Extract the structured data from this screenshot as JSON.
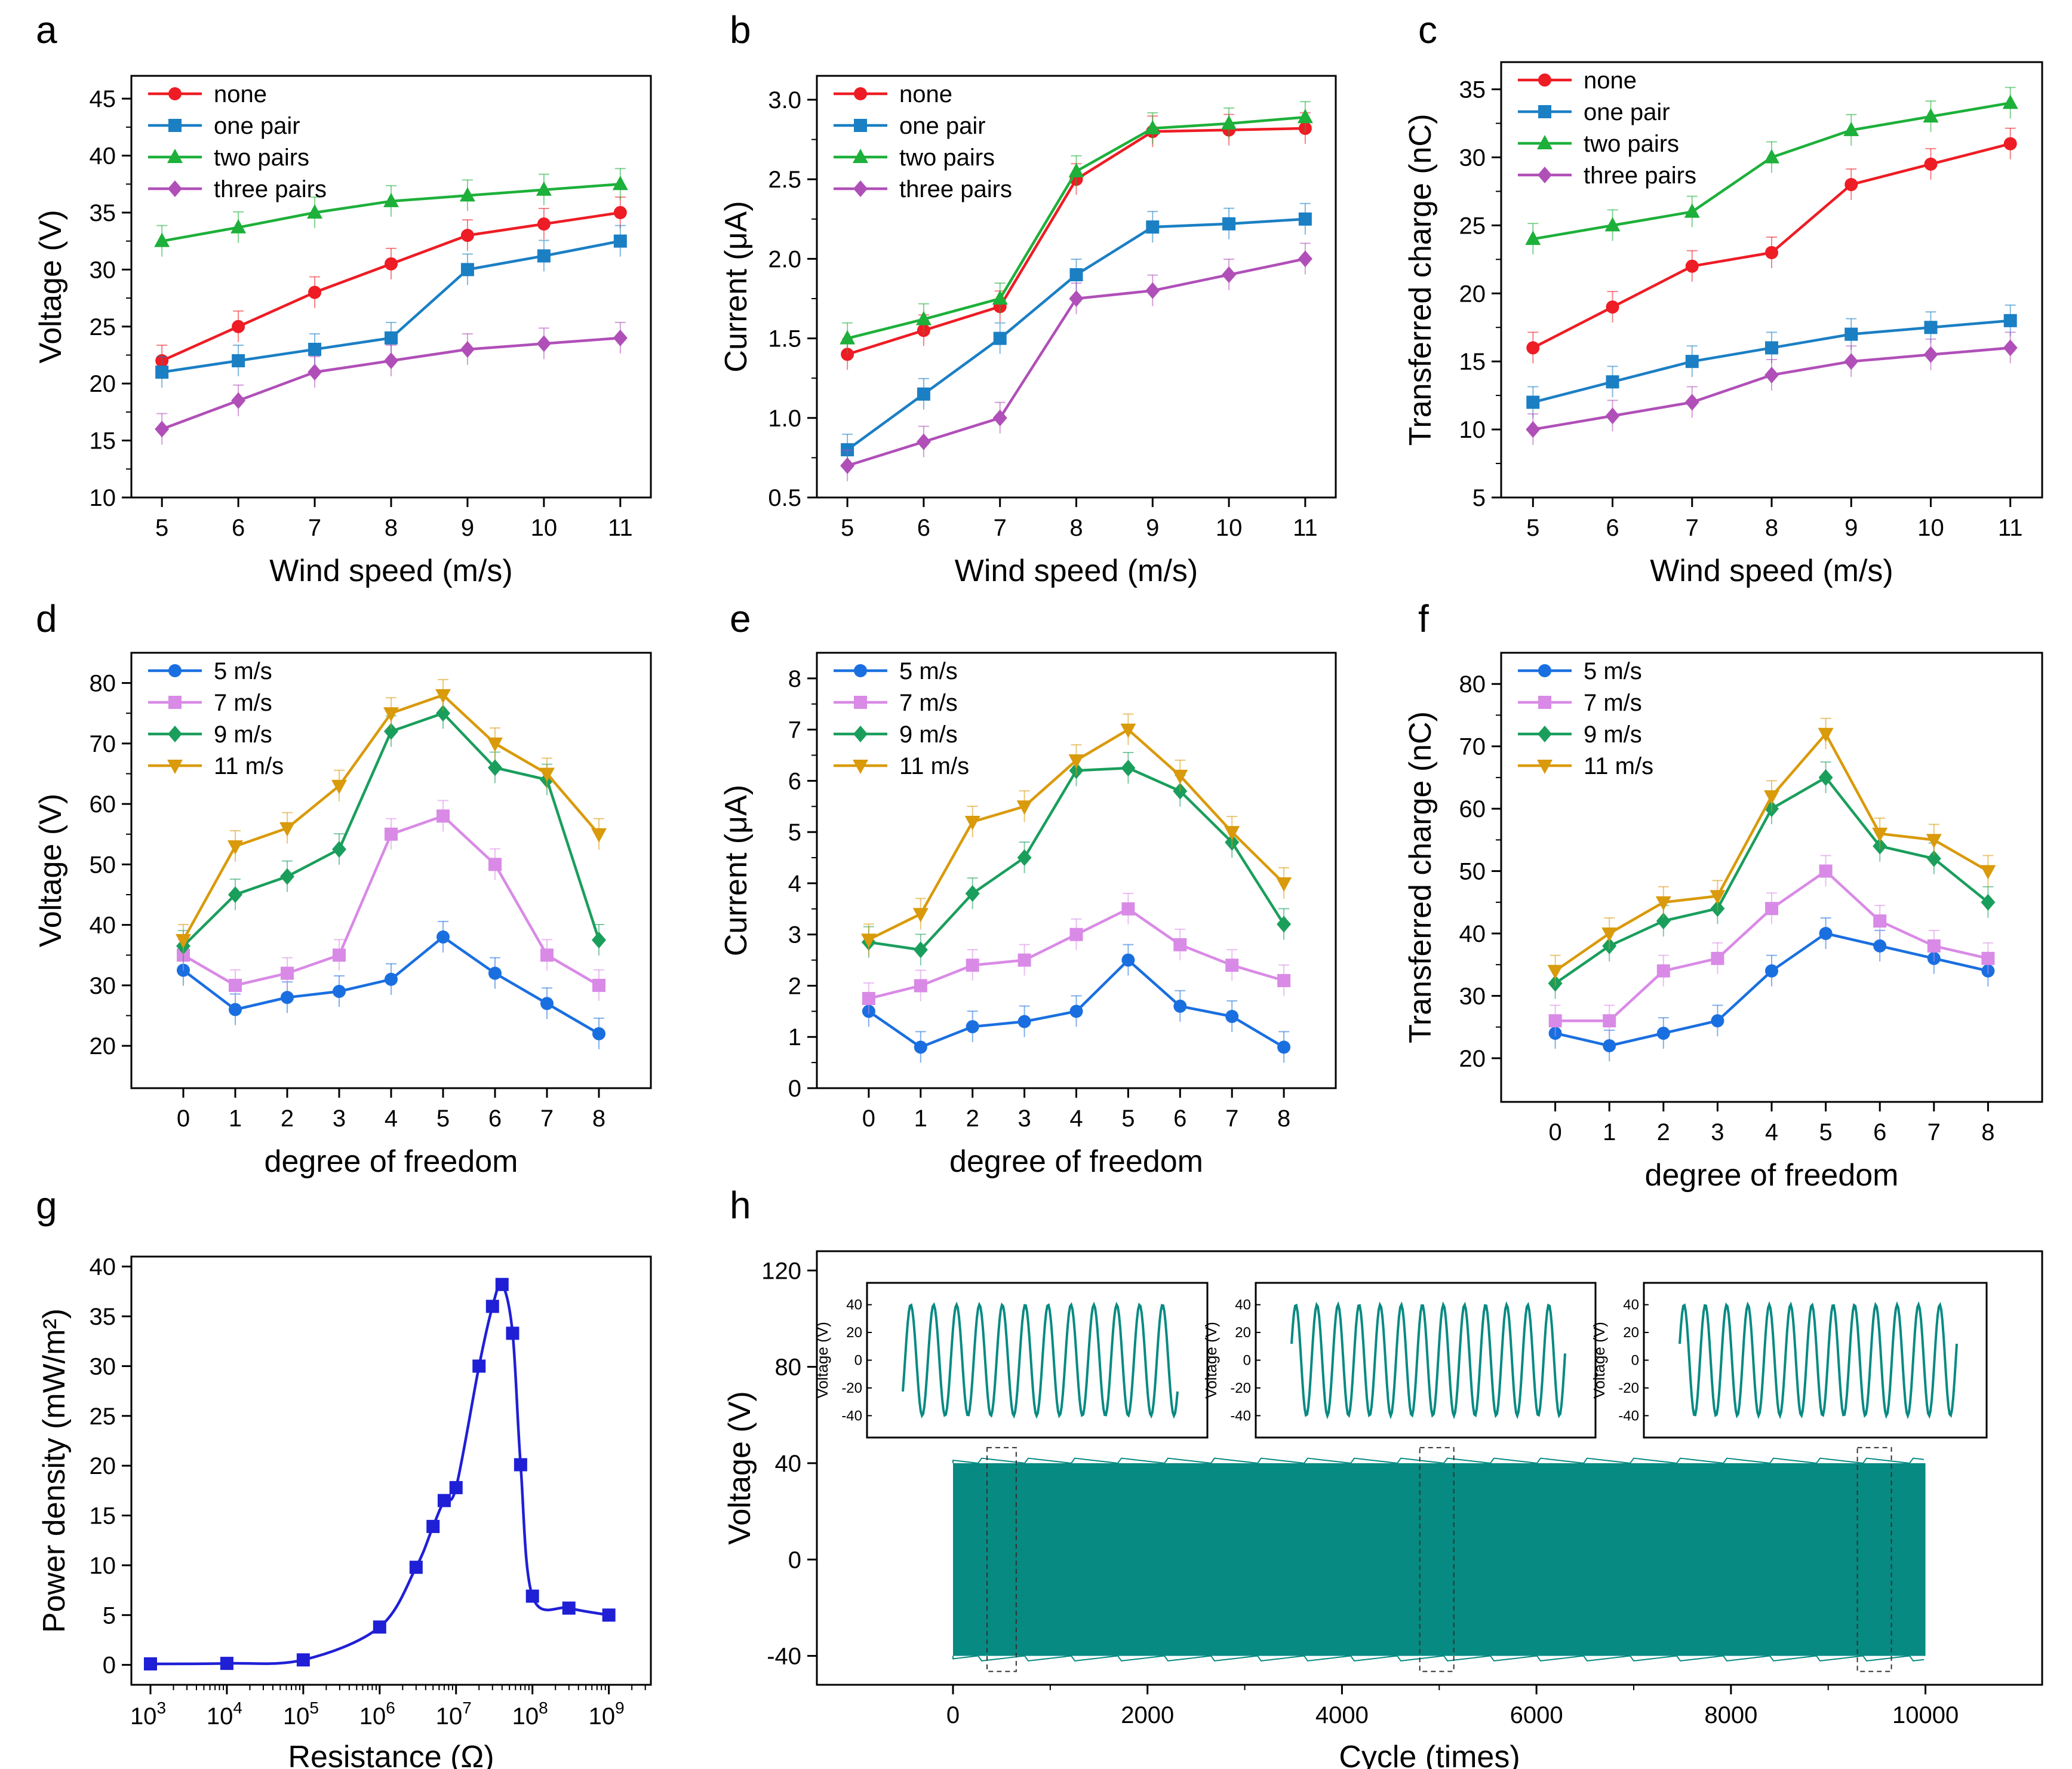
{
  "figure_title": "",
  "colors": {
    "red": "#ee1c24",
    "blue": "#1b7fc4",
    "green": "#1db03a",
    "purple": "#b04fb8",
    "d_blue": "#1a6fe0",
    "d_pink": "#d98ae6",
    "d_green": "#1a9e5c",
    "d_gold": "#d99a0b",
    "g_line": "#1f1fd6",
    "h_teal": "#078a82",
    "axis": "#000000"
  },
  "chart_data": [
    {
      "id": "a",
      "panel_label": "a",
      "type": "line",
      "xlabel": "Wind speed (m/s)",
      "ylabel": "Voltage (V)",
      "x": [
        5,
        6,
        7,
        8,
        9,
        10,
        11
      ],
      "xlim": [
        4.6,
        11.4
      ],
      "xticks": [
        "5",
        "6",
        "7",
        "8",
        "9",
        "10",
        "11"
      ],
      "ylim": [
        10,
        47
      ],
      "yticks": [
        "10",
        "15",
        "20",
        "25",
        "30",
        "35",
        "40",
        "45"
      ],
      "ytick_values": [
        10,
        15,
        20,
        25,
        30,
        35,
        40,
        45
      ],
      "legend_position": "top-left",
      "series": [
        {
          "name": "none",
          "color": "red",
          "marker": "circle",
          "values": [
            22,
            25,
            28,
            30.5,
            33,
            34,
            35
          ]
        },
        {
          "name": "one pair",
          "color": "blue",
          "marker": "square",
          "values": [
            21,
            22,
            23,
            24,
            30,
            31.2,
            32.5
          ]
        },
        {
          "name": "two pairs",
          "color": "green",
          "marker": "triangle-up",
          "values": [
            32.5,
            33.7,
            35,
            36,
            36.5,
            37,
            37.5
          ]
        },
        {
          "name": "three pairs",
          "color": "purple",
          "marker": "diamond",
          "values": [
            16,
            18.5,
            21,
            22,
            23,
            23.5,
            24
          ]
        }
      ]
    },
    {
      "id": "b",
      "panel_label": "b",
      "type": "line",
      "xlabel": "Wind speed (m/s)",
      "ylabel": "Current (μA)",
      "x": [
        5,
        6,
        7,
        8,
        9,
        10,
        11
      ],
      "xlim": [
        4.6,
        11.4
      ],
      "xticks": [
        "5",
        "6",
        "7",
        "8",
        "9",
        "10",
        "11"
      ],
      "ylim": [
        0.5,
        3.15
      ],
      "yticks": [
        "0.5",
        "1.0",
        "1.5",
        "2.0",
        "2.5",
        "3.0"
      ],
      "ytick_values": [
        0.5,
        1.0,
        1.5,
        2.0,
        2.5,
        3.0
      ],
      "legend_position": "top-left",
      "series": [
        {
          "name": "none",
          "color": "red",
          "marker": "circle",
          "values": [
            1.4,
            1.55,
            1.7,
            2.5,
            2.8,
            2.81,
            2.82
          ]
        },
        {
          "name": "one pair",
          "color": "blue",
          "marker": "square",
          "values": [
            0.8,
            1.15,
            1.5,
            1.9,
            2.2,
            2.22,
            2.25
          ]
        },
        {
          "name": "two pairs",
          "color": "green",
          "marker": "triangle-up",
          "values": [
            1.5,
            1.62,
            1.75,
            2.55,
            2.82,
            2.85,
            2.89
          ]
        },
        {
          "name": "three pairs",
          "color": "purple",
          "marker": "diamond",
          "values": [
            0.7,
            0.85,
            1.0,
            1.75,
            1.8,
            1.9,
            2.0
          ]
        }
      ]
    },
    {
      "id": "c",
      "panel_label": "c",
      "type": "line",
      "xlabel": "Wind speed (m/s)",
      "ylabel": "Transferred charge (nC)",
      "x": [
        5,
        6,
        7,
        8,
        9,
        10,
        11
      ],
      "xlim": [
        4.6,
        11.4
      ],
      "xticks": [
        "5",
        "6",
        "7",
        "8",
        "9",
        "10",
        "11"
      ],
      "ylim": [
        5,
        37
      ],
      "yticks": [
        "5",
        "10",
        "15",
        "20",
        "25",
        "30",
        "35"
      ],
      "ytick_values": [
        5,
        10,
        15,
        20,
        25,
        30,
        35
      ],
      "legend_position": "top-left",
      "series": [
        {
          "name": "none",
          "color": "red",
          "marker": "circle",
          "values": [
            16,
            19,
            22,
            23,
            28,
            29.5,
            31
          ]
        },
        {
          "name": "one pair",
          "color": "blue",
          "marker": "square",
          "values": [
            12,
            13.5,
            15,
            16,
            17,
            17.5,
            18
          ]
        },
        {
          "name": "two pairs",
          "color": "green",
          "marker": "triangle-up",
          "values": [
            24,
            25,
            26,
            30,
            32,
            33,
            34
          ]
        },
        {
          "name": "three pairs",
          "color": "purple",
          "marker": "diamond",
          "values": [
            10,
            11,
            12,
            14,
            15,
            15.5,
            16
          ]
        }
      ]
    },
    {
      "id": "d",
      "panel_label": "d",
      "type": "line",
      "xlabel": "degree of freedom",
      "ylabel": "Voltage (V)",
      "x": [
        0,
        1,
        2,
        3,
        4,
        5,
        6,
        7,
        8
      ],
      "xlim": [
        -1,
        9
      ],
      "xticks": [
        "0",
        "1",
        "2",
        "3",
        "4",
        "5",
        "6",
        "7",
        "8"
      ],
      "ylim": [
        13,
        85
      ],
      "yticks": [
        "20",
        "30",
        "40",
        "50",
        "60",
        "70",
        "80"
      ],
      "ytick_values": [
        20,
        30,
        40,
        50,
        60,
        70,
        80
      ],
      "legend_position": "top-left",
      "series": [
        {
          "name": "5 m/s",
          "color": "d_blue",
          "marker": "circle",
          "values": [
            32.5,
            26,
            28,
            29,
            31,
            38,
            32,
            27,
            22
          ]
        },
        {
          "name": "7 m/s",
          "color": "d_pink",
          "marker": "square",
          "values": [
            35,
            30,
            32,
            35,
            55,
            58,
            50,
            35,
            30
          ]
        },
        {
          "name": "9 m/s",
          "color": "d_green",
          "marker": "diamond",
          "values": [
            36.5,
            45,
            48,
            52.5,
            72,
            75,
            66,
            64,
            37.5
          ]
        },
        {
          "name": "11 m/s",
          "color": "d_gold",
          "marker": "triangle-down",
          "values": [
            37.5,
            53,
            56,
            63,
            75,
            78,
            70,
            65,
            55
          ]
        }
      ]
    },
    {
      "id": "e",
      "panel_label": "e",
      "type": "line",
      "xlabel": "degree of freedom",
      "ylabel": "Current (μA)",
      "x": [
        0,
        1,
        2,
        3,
        4,
        5,
        6,
        7,
        8
      ],
      "xlim": [
        -1,
        9
      ],
      "xticks": [
        "0",
        "1",
        "2",
        "3",
        "4",
        "5",
        "6",
        "7",
        "8"
      ],
      "ylim": [
        0,
        8.5
      ],
      "yticks": [
        "0",
        "1",
        "2",
        "3",
        "4",
        "5",
        "6",
        "7",
        "8"
      ],
      "ytick_values": [
        0,
        1,
        2,
        3,
        4,
        5,
        6,
        7,
        8
      ],
      "legend_position": "top-left",
      "series": [
        {
          "name": "5 m/s",
          "color": "d_blue",
          "marker": "circle",
          "values": [
            1.5,
            0.8,
            1.2,
            1.3,
            1.5,
            2.5,
            1.6,
            1.4,
            0.8
          ]
        },
        {
          "name": "7 m/s",
          "color": "d_pink",
          "marker": "square",
          "values": [
            1.75,
            2.0,
            2.4,
            2.5,
            3.0,
            3.5,
            2.8,
            2.4,
            2.1
          ]
        },
        {
          "name": "9 m/s",
          "color": "d_green",
          "marker": "diamond",
          "values": [
            2.85,
            2.7,
            3.8,
            4.5,
            6.2,
            6.25,
            5.8,
            4.8,
            3.2
          ]
        },
        {
          "name": "11 m/s",
          "color": "d_gold",
          "marker": "triangle-down",
          "values": [
            2.9,
            3.4,
            5.2,
            5.5,
            6.4,
            7.0,
            6.1,
            5.0,
            4.0
          ]
        }
      ]
    },
    {
      "id": "f",
      "panel_label": "f",
      "type": "line",
      "xlabel": "degree of freedom",
      "ylabel": "Transferred charge (nC)",
      "x": [
        0,
        1,
        2,
        3,
        4,
        5,
        6,
        7,
        8
      ],
      "xlim": [
        -1,
        9
      ],
      "xticks": [
        "0",
        "1",
        "2",
        "3",
        "4",
        "5",
        "6",
        "7",
        "8"
      ],
      "ylim": [
        13,
        85
      ],
      "yticks": [
        "20",
        "30",
        "40",
        "50",
        "60",
        "70",
        "80"
      ],
      "ytick_values": [
        20,
        30,
        40,
        50,
        60,
        70,
        80
      ],
      "legend_position": "top-left",
      "series": [
        {
          "name": "5 m/s",
          "color": "d_blue",
          "marker": "circle",
          "values": [
            24,
            22,
            24,
            26,
            34,
            40,
            38,
            36,
            34
          ]
        },
        {
          "name": "7 m/s",
          "color": "d_pink",
          "marker": "square",
          "values": [
            26,
            26,
            34,
            36,
            44,
            50,
            42,
            38,
            36
          ]
        },
        {
          "name": "9 m/s",
          "color": "d_green",
          "marker": "diamond",
          "values": [
            32,
            38,
            42,
            44,
            60,
            65,
            54,
            52,
            45
          ]
        },
        {
          "name": "11 m/s",
          "color": "d_gold",
          "marker": "triangle-down",
          "values": [
            34,
            40,
            45,
            46,
            62,
            72,
            56,
            55,
            50
          ]
        }
      ]
    },
    {
      "id": "g",
      "panel_label": "g",
      "type": "line",
      "xlabel": "Resistance (Ω)",
      "ylabel": "Power density (mW/m²)",
      "xscale": "log",
      "xlim_exp": [
        2.75,
        9.55
      ],
      "xticks": [
        {
          "base": "10",
          "exp": "3"
        },
        {
          "base": "10",
          "exp": "4"
        },
        {
          "base": "10",
          "exp": "5"
        },
        {
          "base": "10",
          "exp": "6"
        },
        {
          "base": "10",
          "exp": "7"
        },
        {
          "base": "10",
          "exp": "8"
        },
        {
          "base": "10",
          "exp": "9"
        }
      ],
      "xtick_exps": [
        3,
        4,
        5,
        6,
        7,
        8,
        9
      ],
      "ylim": [
        -2,
        41
      ],
      "yticks": [
        "0",
        "5",
        "10",
        "15",
        "20",
        "25",
        "30",
        "35",
        "40"
      ],
      "ytick_values": [
        0,
        5,
        10,
        15,
        20,
        25,
        30,
        35,
        40
      ],
      "series": [
        {
          "name": "power density",
          "color": "g_line",
          "marker": "square",
          "x": [
            1000.0,
            10000.0,
            100000.0,
            1000000.0,
            3000000.0,
            5000000.0,
            7000000.0,
            10000000.0,
            20000000.0,
            30000000.0,
            40000000.0,
            55000000.0,
            70000000.0,
            100000000.0,
            300000000.0,
            1000000000.0
          ],
          "values": [
            0.1,
            0.15,
            0.5,
            3.8,
            9.8,
            13.9,
            16.5,
            17.8,
            30,
            36,
            38.2,
            33.3,
            20.1,
            6.9,
            5.7,
            5.0
          ]
        }
      ]
    },
    {
      "id": "h",
      "panel_label": "h",
      "type": "line",
      "xlabel": "Cycle (times)",
      "ylabel": "Voltage (V)",
      "xlim": [
        -1400,
        11200
      ],
      "xticks": [
        "0",
        "2000",
        "4000",
        "6000",
        "8000",
        "10000"
      ],
      "xtick_values": [
        0,
        2000,
        4000,
        6000,
        8000,
        10000
      ],
      "ylim": [
        -52,
        128
      ],
      "yticks": [
        "-40",
        "0",
        "40",
        "80",
        "120"
      ],
      "ytick_values": [
        -40,
        0,
        40,
        80,
        120
      ],
      "signal": {
        "cycles": 10000,
        "amplitude_min": -40,
        "amplitude_max": 40,
        "color": "h_teal"
      },
      "zoom_windows": [
        [
          350,
          650
        ],
        [
          4800,
          5150
        ],
        [
          9300,
          9650
        ]
      ],
      "insets": [
        {
          "ylabel": "Voltage (V)",
          "yticks": [
            "-40",
            "-20",
            "0",
            "20",
            "40"
          ],
          "ytick_values": [
            -40,
            -20,
            0,
            20,
            40
          ],
          "periods": 12
        },
        {
          "ylabel": "Voltage (V)",
          "yticks": [
            "-40",
            "-20",
            "0",
            "20",
            "40"
          ],
          "ytick_values": [
            -40,
            -20,
            0,
            20,
            40
          ],
          "periods": 13
        },
        {
          "ylabel": "Voltage (V)",
          "yticks": [
            "-40",
            "-20",
            "0",
            "20",
            "40"
          ],
          "ytick_values": [
            -40,
            -20,
            0,
            20,
            40
          ],
          "periods": 13
        }
      ]
    }
  ]
}
